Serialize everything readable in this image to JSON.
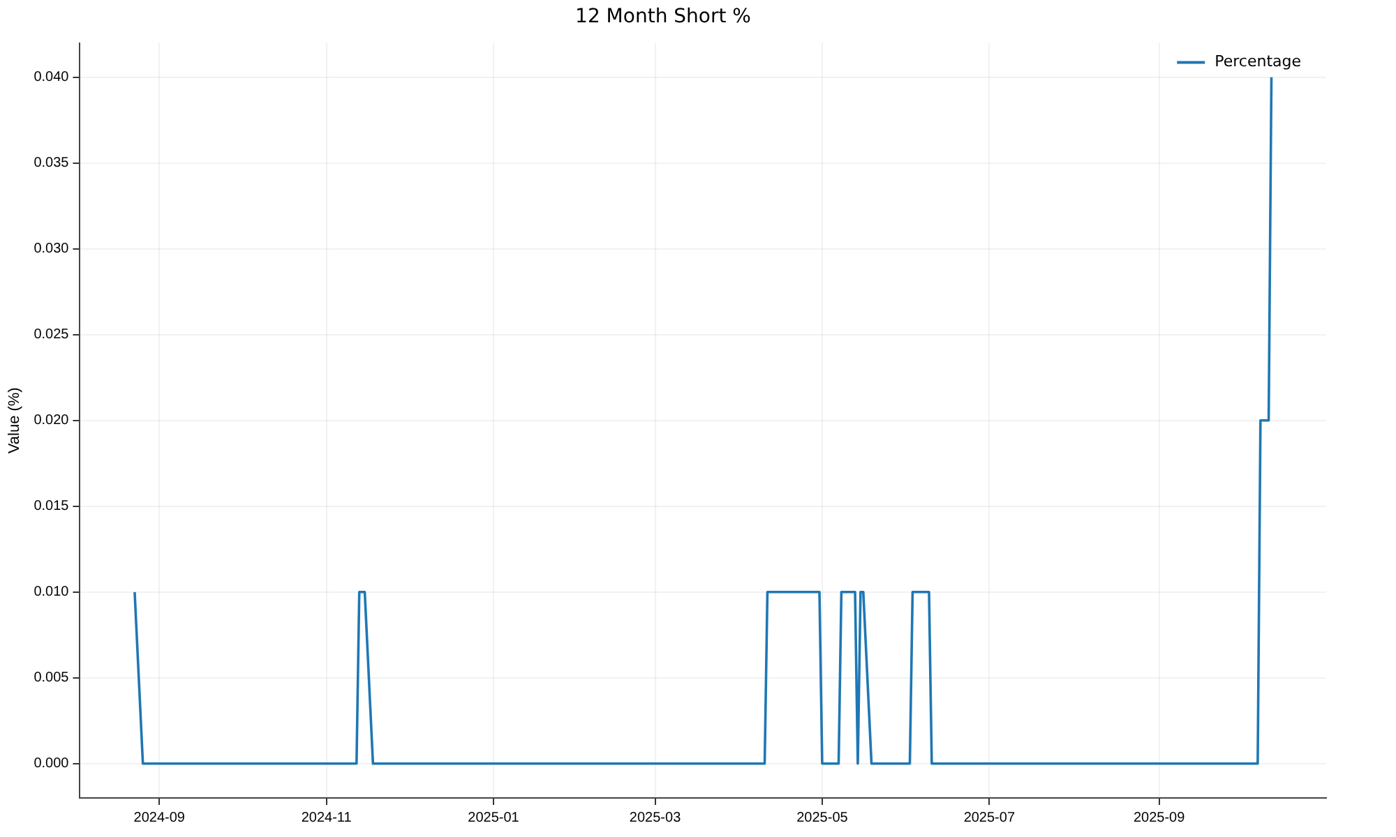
{
  "chart_data": {
    "type": "line",
    "title": "12 Month Short %",
    "ylabel": "Value (%)",
    "x": [
      "2024-08-23",
      "2024-08-26",
      "2024-11-12",
      "2024-11-13",
      "2024-11-15",
      "2024-11-18",
      "2025-04-10",
      "2025-04-11",
      "2025-04-30",
      "2025-05-01",
      "2025-05-07",
      "2025-05-08",
      "2025-05-13",
      "2025-05-14",
      "2025-05-15",
      "2025-05-16",
      "2025-05-19",
      "2025-06-02",
      "2025-06-03",
      "2025-06-09",
      "2025-06-10",
      "2025-10-07",
      "2025-10-08",
      "2025-10-11",
      "2025-10-12"
    ],
    "series": [
      {
        "name": "Percentage",
        "color": "#1f77b4",
        "values": [
          0.01,
          0,
          0,
          0.01,
          0.01,
          0,
          0,
          0.01,
          0.01,
          0,
          0,
          0.01,
          0.01,
          0,
          0.01,
          0.01,
          0,
          0,
          0.01,
          0.01,
          0,
          0,
          0.02,
          0.02,
          0.04
        ]
      }
    ],
    "xlim": [
      "2024-08-03",
      "2025-11-01"
    ],
    "xticks": [
      {
        "value": "2024-09-01",
        "label": "2024-09"
      },
      {
        "value": "2024-11-01",
        "label": "2024-11"
      },
      {
        "value": "2025-01-01",
        "label": "2025-01"
      },
      {
        "value": "2025-03-01",
        "label": "2025-03"
      },
      {
        "value": "2025-05-01",
        "label": "2025-05"
      },
      {
        "value": "2025-07-01",
        "label": "2025-07"
      },
      {
        "value": "2025-09-01",
        "label": "2025-09"
      }
    ],
    "ylim": [
      -0.002,
      0.042
    ],
    "yticks": [
      {
        "value": 0,
        "label": "0.000"
      },
      {
        "value": 0.005,
        "label": "0.005"
      },
      {
        "value": 0.01,
        "label": "0.010"
      },
      {
        "value": 0.015,
        "label": "0.015"
      },
      {
        "value": 0.02,
        "label": "0.020"
      },
      {
        "value": 0.025,
        "label": "0.025"
      },
      {
        "value": 0.03,
        "label": "0.030"
      },
      {
        "value": 0.035,
        "label": "0.035"
      },
      {
        "value": 0.04,
        "label": "0.040"
      }
    ],
    "grid": true,
    "legend": "top right",
    "marker": "none",
    "line_style": "solid"
  }
}
